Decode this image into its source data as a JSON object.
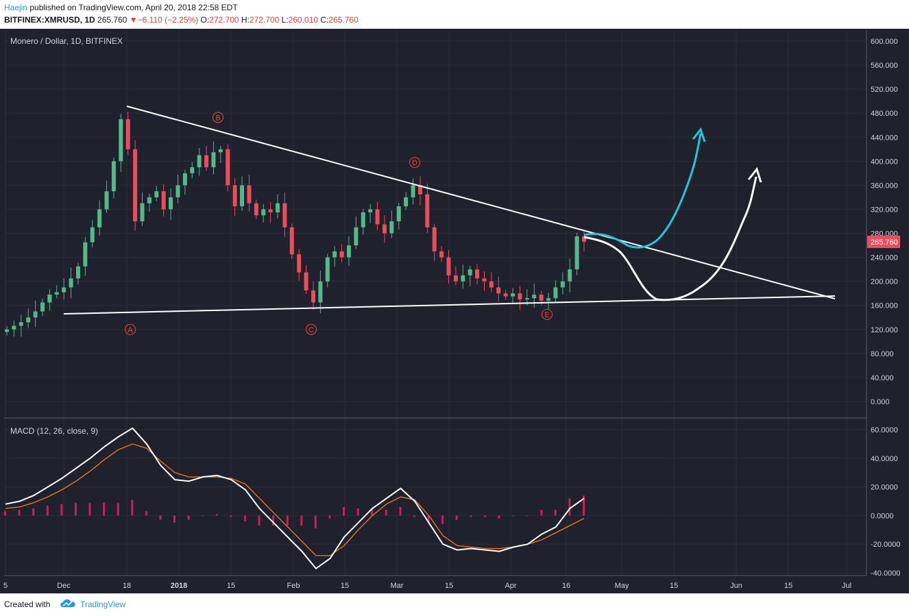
{
  "header": {
    "author": "Haejin",
    "published": " published on TradingView.com, April 20, 2018 22:58 EDT",
    "symbol": "BITFINEX:XMRUSD, 1D",
    "last": "265.760",
    "change_arrow": "▼",
    "change": "−6.110 (−2.25%)",
    "open_label": "O:",
    "open": "272.700",
    "high_label": "H:",
    "high": "272.700",
    "low_label": "L:",
    "low": "260.010",
    "close_label": "C:",
    "close": "265.760"
  },
  "footer": {
    "created": "Created with",
    "brand": "TradingView"
  },
  "colors": {
    "background": "#1f212d",
    "grid": "#2a2e39",
    "up": "#53b987",
    "down": "#eb4d5c",
    "macd": "#ffffff",
    "signal": "#f57c1f",
    "histogram": "#e91e63",
    "trendline": "#ffffff",
    "projection_cyan": "#26c6da",
    "pivot_label": "#f44336"
  },
  "chart_data": [
    {
      "type": "candlestick",
      "title": "Monero / Dollar, 1D, BITFINEX",
      "x_tick_labels": [
        "5",
        "Dec",
        "18",
        "2018",
        "15",
        "Feb",
        "15",
        "Mar",
        "15",
        "Apr",
        "16",
        "May",
        "15",
        "Jun",
        "15",
        "Jul"
      ],
      "y_tick_labels": [
        "600.000",
        "560.000",
        "520.000",
        "480.000",
        "440.000",
        "400.000",
        "360.000",
        "320.000",
        "280.000",
        "240.000",
        "200.000",
        "160.000",
        "120.000",
        "80.000",
        "40.000",
        "0.000"
      ],
      "ylim": [
        -15,
        622
      ],
      "last_price_label": "265.760",
      "close_series": [
        120,
        126,
        132,
        140,
        150,
        165,
        178,
        182,
        190,
        205,
        225,
        265,
        290,
        320,
        350,
        400,
        470,
        420,
        300,
        330,
        340,
        350,
        320,
        340,
        360,
        380,
        390,
        410,
        390,
        415,
        420,
        360,
        325,
        360,
        330,
        310,
        320,
        315,
        330,
        290,
        245,
        215,
        185,
        165,
        200,
        240,
        250,
        240,
        260,
        290,
        315,
        320,
        295,
        280,
        300,
        325,
        340,
        360,
        345,
        290,
        250,
        240,
        210,
        200,
        210,
        220,
        205,
        200,
        190,
        180,
        175,
        180,
        170,
        172,
        178,
        168,
        172,
        190,
        200,
        220,
        275,
        266
      ],
      "pivot_labels": [
        {
          "label": "A",
          "date_index": 20,
          "price": 120
        },
        {
          "label": "B",
          "date_index": 35,
          "price": 473
        },
        {
          "label": "C",
          "date_index": 53,
          "price": 120
        },
        {
          "label": "D",
          "date_index": 71,
          "price": 398
        },
        {
          "label": "E",
          "date_index": 93,
          "price": 145
        }
      ]
    },
    {
      "type": "line",
      "title": "MACD (12, 26, close, 9)",
      "y_tick_labels": [
        "60.0000",
        "40.0000",
        "20.0000",
        "0.0000",
        "-20.0000",
        "-40.0000"
      ],
      "ylim": [
        -42,
        64
      ],
      "macd": [
        8,
        10,
        14,
        20,
        26,
        33,
        40,
        48,
        55,
        61,
        50,
        35,
        25,
        24,
        27,
        28,
        25,
        18,
        5,
        -5,
        -15,
        -25,
        -37,
        -30,
        -15,
        -5,
        5,
        12,
        19,
        10,
        -5,
        -20,
        -24,
        -23,
        -24,
        -25,
        -22,
        -20,
        -13,
        -8,
        5,
        12
      ],
      "signal": [
        5,
        6,
        9,
        13,
        18,
        24,
        31,
        39,
        46,
        50,
        47,
        38,
        30,
        27,
        27,
        27,
        26,
        22,
        12,
        2,
        -8,
        -18,
        -28,
        -28,
        -21,
        -10,
        0,
        8,
        13,
        11,
        0,
        -14,
        -21,
        -22,
        -23,
        -23,
        -22,
        -20,
        -17,
        -12,
        -7,
        -2
      ],
      "histogram": [
        3,
        4,
        5,
        7,
        8,
        9,
        9,
        9,
        9,
        11,
        3,
        -3,
        -5,
        -3,
        0,
        1,
        -1,
        -4,
        -7,
        -7,
        -7,
        -7,
        -9,
        -2,
        6,
        5,
        5,
        4,
        6,
        -1,
        -5,
        -6,
        -3,
        -1,
        -1,
        -2,
        0,
        0,
        4,
        4,
        12,
        14
      ]
    }
  ]
}
